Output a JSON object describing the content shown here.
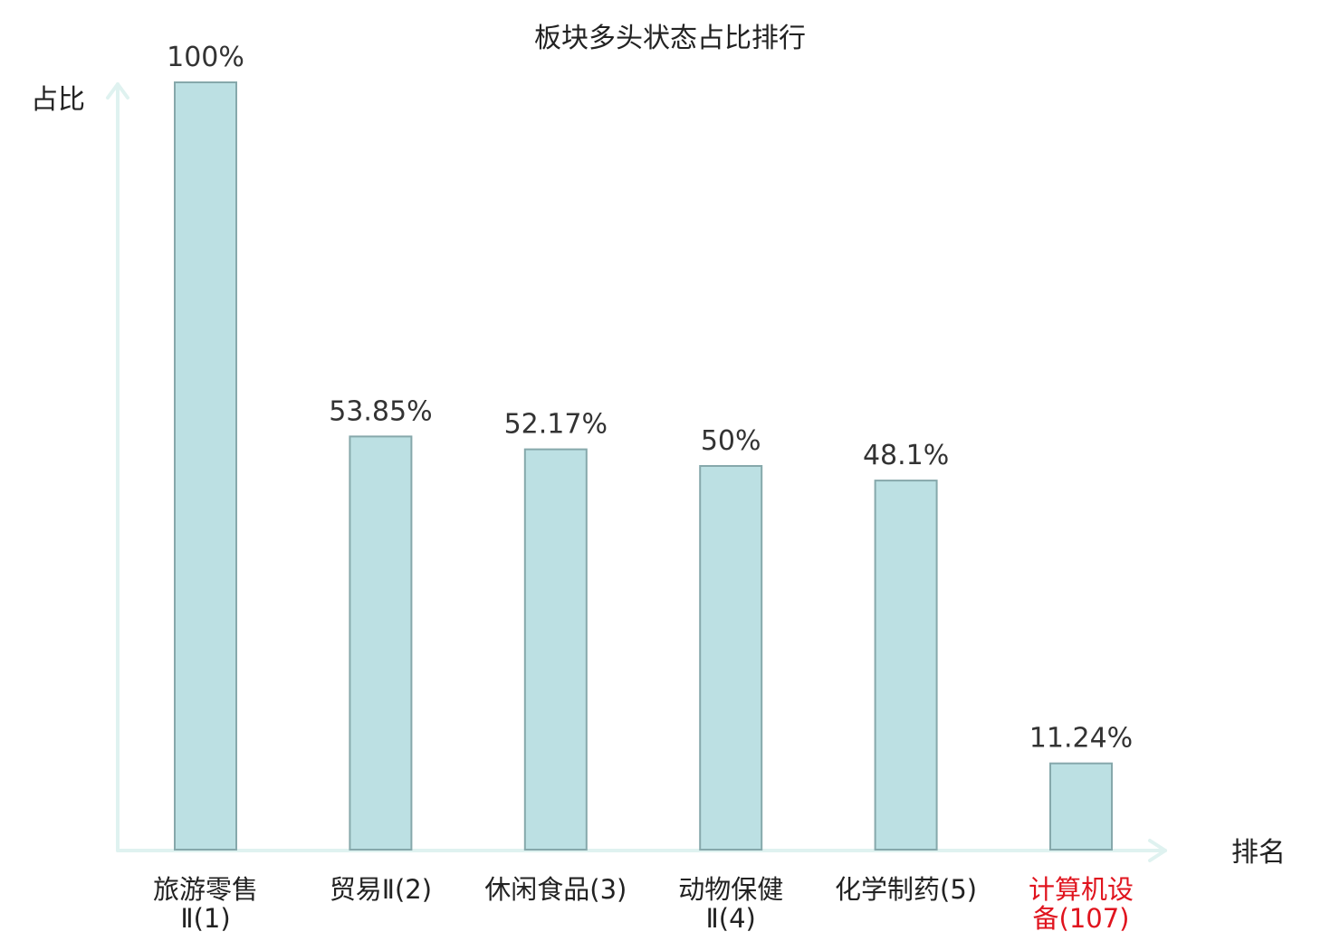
{
  "chart_data": {
    "type": "bar",
    "title": "板块多头状态占比排行",
    "ylabel": "占比",
    "xlabel": "排名",
    "ylim": [
      0,
      100
    ],
    "grid": false,
    "legend": "none",
    "categories": [
      {
        "lines": [
          "旅游零售",
          "Ⅱ(1)"
        ],
        "highlight": false
      },
      {
        "lines": [
          "贸易Ⅱ(2)"
        ],
        "highlight": false
      },
      {
        "lines": [
          "休闲食品(3)"
        ],
        "highlight": false
      },
      {
        "lines": [
          "动物保健",
          "Ⅱ(4)"
        ],
        "highlight": false
      },
      {
        "lines": [
          "化学制药(5)"
        ],
        "highlight": false
      },
      {
        "lines": [
          "计算机设",
          "备(107)"
        ],
        "highlight": true
      }
    ],
    "values": [
      100,
      53.85,
      52.17,
      50,
      48.1,
      11.24
    ],
    "value_labels": [
      "100%",
      "53.85%",
      "52.17%",
      "50%",
      "48.1%",
      "11.24%"
    ]
  },
  "colors": {
    "bar_fill": "#bce0e3",
    "bar_stroke": "#86a8ab",
    "axis": "#dff2f0",
    "label_text": "#222222",
    "highlight_text": "#e0141e"
  }
}
